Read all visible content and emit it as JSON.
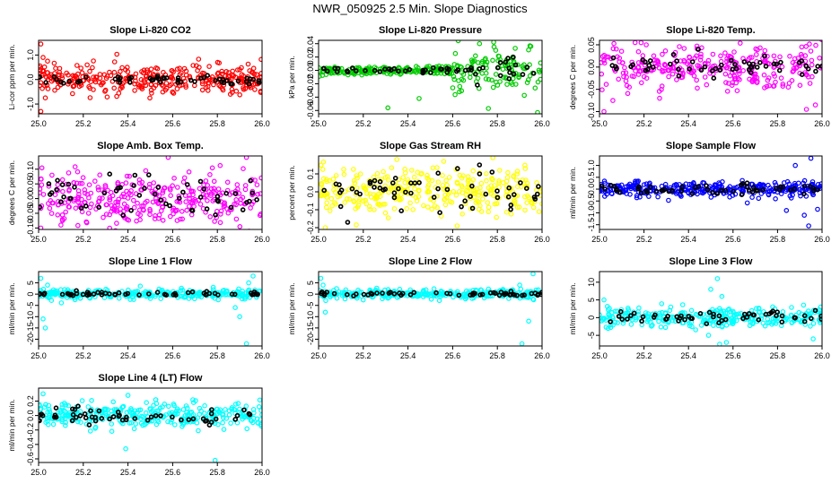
{
  "page_title": "NWR_050925  2.5 Min. Slope Diagnostics",
  "colors": {
    "background": "#ffffff",
    "reference_points": "#000000",
    "li820_co2": "#ff0000",
    "li820_pressure": "#00cc00",
    "magenta": "#ff00ff",
    "yellow": "#ffff00",
    "blue": "#0000ff",
    "cyan": "#00ffff"
  },
  "chart_data": [
    {
      "type": "scatter",
      "title": "Slope Li-820 CO2",
      "ylabel": "Li-cor ppm per min.",
      "xlim": [
        25.0,
        26.0
      ],
      "ylim": [
        -1.4,
        1.6
      ],
      "yticks": [
        -1.0,
        0.0,
        1.0
      ],
      "ytick_labels": [
        "-1.0",
        "0.0",
        "1.0"
      ],
      "xticks": [
        25.0,
        25.2,
        25.4,
        25.6,
        25.8,
        26.0
      ],
      "xtick_labels": [
        "25.0",
        "25.2",
        "25.4",
        "25.6",
        "25.8",
        "26.0"
      ],
      "series": [
        {
          "color": "#ff0000",
          "spread": 0.28,
          "n": 330,
          "outliers": [
            [
              25.01,
              1.45
            ],
            [
              25.01,
              -1.3
            ],
            [
              25.02,
              0.9
            ],
            [
              25.03,
              -0.75
            ],
            [
              25.04,
              0.75
            ]
          ]
        },
        {
          "color": "#000000",
          "spread": 0.12,
          "n": 55
        }
      ]
    },
    {
      "type": "scatter",
      "title": "Slope Li-820 Pressure",
      "ylabel": "kPa per min.",
      "xlim": [
        25.0,
        26.0
      ],
      "ylim": [
        -0.065,
        0.045
      ],
      "yticks": [
        -0.06,
        -0.04,
        -0.02,
        0.0,
        0.02,
        0.04
      ],
      "ytick_labels": [
        "-0.06",
        "-0.04",
        "-0.02",
        "0.00",
        "0.02",
        "0.04"
      ],
      "xticks": [
        25.0,
        25.2,
        25.4,
        25.6,
        25.8,
        26.0
      ],
      "xtick_labels": [
        "25.0",
        "25.2",
        "25.4",
        "25.6",
        "25.8",
        "26.0"
      ],
      "series": [
        {
          "color": "#00cc00",
          "spread": 0.003,
          "n": 300,
          "wide_from": 25.6,
          "wide_spread": 0.016,
          "outliers": [
            [
              25.72,
              0.04
            ],
            [
              25.88,
              0.033
            ],
            [
              25.95,
              0.036
            ],
            [
              25.76,
              -0.057
            ],
            [
              25.98,
              -0.063
            ],
            [
              25.31,
              -0.056
            ],
            [
              25.45,
              -0.042
            ],
            [
              25.63,
              -0.032
            ]
          ]
        },
        {
          "color": "#000000",
          "spread": 0.002,
          "n": 55,
          "wide_from": 25.7,
          "wide_spread": 0.01
        }
      ]
    },
    {
      "type": "scatter",
      "title": "Slope Li-820 Temp.",
      "ylabel": "degrees C per min.",
      "xlim": [
        25.0,
        26.0
      ],
      "ylim": [
        -0.105,
        0.06
      ],
      "yticks": [
        -0.1,
        -0.05,
        0.0,
        0.05
      ],
      "ytick_labels": [
        "-0.10",
        "-0.05",
        "0.00",
        "0.05"
      ],
      "xticks": [
        25.0,
        25.2,
        25.4,
        25.6,
        25.8,
        26.0
      ],
      "xtick_labels": [
        "25.0",
        "25.2",
        "25.4",
        "25.6",
        "25.8",
        "26.0"
      ],
      "series": [
        {
          "color": "#ff00ff",
          "spread": 0.025,
          "n": 300,
          "outliers": [
            [
              25.02,
              -0.1
            ],
            [
              25.06,
              -0.075
            ],
            [
              25.16,
              0.055
            ],
            [
              25.21,
              0.05
            ],
            [
              25.27,
              -0.07
            ],
            [
              25.93,
              -0.095
            ],
            [
              25.97,
              -0.085
            ]
          ]
        },
        {
          "color": "#000000",
          "spread": 0.012,
          "n": 55
        }
      ]
    },
    {
      "type": "scatter",
      "title": "Slope Amb. Box Temp.",
      "ylabel": "degrees C per min.",
      "xlim": [
        25.0,
        26.0
      ],
      "ylim": [
        -0.105,
        0.145
      ],
      "yticks": [
        -0.1,
        -0.05,
        0.0,
        0.05,
        0.1
      ],
      "ytick_labels": [
        "-0.10",
        "-0.05",
        "0.00",
        "0.05",
        "0.10"
      ],
      "xticks": [
        25.0,
        25.2,
        25.4,
        25.6,
        25.8,
        26.0
      ],
      "xtick_labels": [
        "25.0",
        "25.2",
        "25.4",
        "25.6",
        "25.8",
        "26.0"
      ],
      "series": [
        {
          "color": "#ff00ff",
          "spread": 0.045,
          "n": 330,
          "outliers": [
            [
              25.58,
              0.14
            ],
            [
              25.93,
              0.14
            ],
            [
              25.01,
              -0.1
            ],
            [
              25.1,
              -0.09
            ]
          ]
        },
        {
          "color": "#000000",
          "spread": 0.035,
          "n": 55
        }
      ]
    },
    {
      "type": "scatter",
      "title": "Slope Gas Stream RH",
      "ylabel": "percent per min.",
      "xlim": [
        25.0,
        26.0
      ],
      "ylim": [
        -0.21,
        0.2
      ],
      "yticks": [
        -0.2,
        -0.1,
        0.0,
        0.1
      ],
      "ytick_labels": [
        "-0.2",
        "-0.1",
        "0.0",
        "0.1"
      ],
      "xticks": [
        25.0,
        25.2,
        25.4,
        25.6,
        25.8,
        26.0
      ],
      "xtick_labels": [
        "25.0",
        "25.2",
        "25.4",
        "25.6",
        "25.8",
        "26.0"
      ],
      "series": [
        {
          "color": "#ffff00",
          "spread": 0.065,
          "n": 330,
          "outliers": [
            [
              25.03,
              -0.2
            ],
            [
              25.35,
              0.18
            ],
            [
              25.56,
              0.17
            ],
            [
              25.78,
              0.19
            ],
            [
              25.62,
              -0.19
            ]
          ]
        },
        {
          "color": "#000000",
          "spread": 0.055,
          "n": 55,
          "outliers": [
            [
              25.13,
              -0.17
            ],
            [
              25.72,
              0.15
            ]
          ]
        }
      ]
    },
    {
      "type": "scatter",
      "title": "Slope Sample Flow",
      "ylabel": "ml/min per min.",
      "xlim": [
        25.0,
        26.0
      ],
      "ylim": [
        -1.7,
        1.4
      ],
      "yticks": [
        -1.5,
        -1.0,
        -0.5,
        0.0,
        0.5,
        1.0
      ],
      "ytick_labels": [
        "-1.5",
        "-1.0",
        "-0.5",
        "0.0",
        "0.5",
        "1.0"
      ],
      "xticks": [
        25.0,
        25.2,
        25.4,
        25.6,
        25.8,
        26.0
      ],
      "xtick_labels": [
        "25.0",
        "25.2",
        "25.4",
        "25.6",
        "25.8",
        "26.0"
      ],
      "series": [
        {
          "color": "#0000ff",
          "spread": 0.17,
          "n": 330,
          "outliers": [
            [
              25.88,
              1.0
            ],
            [
              25.95,
              1.3
            ],
            [
              25.92,
              -1.1
            ],
            [
              25.94,
              -1.55
            ],
            [
              25.84,
              -0.9
            ],
            [
              25.98,
              -0.85
            ]
          ]
        },
        {
          "color": "#000000",
          "spread": 0.1,
          "n": 55
        }
      ]
    },
    {
      "type": "scatter",
      "title": "Slope Line 1 Flow",
      "ylabel": "ml/min per min.",
      "xlim": [
        25.0,
        26.0
      ],
      "ylim": [
        -23,
        10
      ],
      "yticks": [
        -20,
        -15,
        -10,
        -5,
        0,
        5
      ],
      "ytick_labels": [
        "-20",
        "-15",
        "-10",
        "-5",
        "0",
        "5"
      ],
      "xticks": [
        25.0,
        25.2,
        25.4,
        25.6,
        25.8,
        26.0
      ],
      "xtick_labels": [
        "25.0",
        "25.2",
        "25.4",
        "25.6",
        "25.8",
        "26.0"
      ],
      "series": [
        {
          "color": "#00ffff",
          "spread": 1.1,
          "n": 300,
          "outliers": [
            [
              25.01,
              7
            ],
            [
              25.02,
              -11
            ],
            [
              25.03,
              -15
            ],
            [
              25.04,
              4
            ],
            [
              25.93,
              -22
            ],
            [
              25.9,
              -10
            ],
            [
              25.96,
              8
            ],
            [
              25.94,
              5
            ],
            [
              25.88,
              -6
            ]
          ]
        },
        {
          "color": "#000000",
          "spread": 0.45,
          "n": 55
        }
      ]
    },
    {
      "type": "scatter",
      "title": "Slope Line 2 Flow",
      "ylabel": "ml/min per min.",
      "xlim": [
        25.0,
        26.0
      ],
      "ylim": [
        -23,
        10
      ],
      "yticks": [
        -20,
        -15,
        -10,
        -5,
        0,
        5
      ],
      "ytick_labels": [
        "-20",
        "-15",
        "-10",
        "-5",
        "0",
        "5"
      ],
      "xticks": [
        25.0,
        25.2,
        25.4,
        25.6,
        25.8,
        26.0
      ],
      "xtick_labels": [
        "25.0",
        "25.2",
        "25.4",
        "25.6",
        "25.8",
        "26.0"
      ],
      "series": [
        {
          "color": "#00ffff",
          "spread": 1.0,
          "n": 300,
          "outliers": [
            [
              25.01,
              7
            ],
            [
              25.02,
              4
            ],
            [
              25.03,
              -8
            ],
            [
              25.91,
              -22
            ],
            [
              25.94,
              -12
            ],
            [
              25.96,
              9
            ],
            [
              25.9,
              4
            ]
          ]
        },
        {
          "color": "#000000",
          "spread": 0.5,
          "n": 55
        }
      ]
    },
    {
      "type": "scatter",
      "title": "Slope Line 3 Flow",
      "ylabel": "ml/min per min.",
      "xlim": [
        25.0,
        26.0
      ],
      "ylim": [
        -8,
        13
      ],
      "yticks": [
        -5,
        0,
        5,
        10
      ],
      "ytick_labels": [
        "-5",
        "0",
        "5",
        "10"
      ],
      "xticks": [
        25.0,
        25.2,
        25.4,
        25.6,
        25.8,
        26.0
      ],
      "xtick_labels": [
        "25.0",
        "25.2",
        "25.4",
        "25.6",
        "25.8",
        "26.0"
      ],
      "series": [
        {
          "color": "#00ffff",
          "spread": 1.4,
          "n": 300,
          "outliers": [
            [
              25.5,
              8
            ],
            [
              25.53,
              11
            ],
            [
              25.55,
              6
            ],
            [
              25.57,
              -7
            ],
            [
              25.54,
              -7.5
            ],
            [
              25.49,
              -5
            ],
            [
              25.02,
              5
            ],
            [
              25.96,
              -6
            ]
          ]
        },
        {
          "color": "#000000",
          "spread": 0.9,
          "n": 55
        }
      ]
    },
    {
      "type": "scatter",
      "title": "Slope Line 4 (LT) Flow",
      "ylabel": "ml/min per min.",
      "xlim": [
        25.0,
        26.0
      ],
      "ylim": [
        -0.65,
        0.38
      ],
      "yticks": [
        -0.6,
        -0.4,
        -0.2,
        0.0,
        0.2
      ],
      "ytick_labels": [
        "-0.6",
        "-0.4",
        "-0.2",
        "0.0",
        "0.2"
      ],
      "xticks": [
        25.0,
        25.2,
        25.4,
        25.6,
        25.8,
        26.0
      ],
      "xtick_labels": [
        "25.0",
        "25.2",
        "25.4",
        "25.6",
        "25.8",
        "26.0"
      ],
      "series": [
        {
          "color": "#00ffff",
          "spread": 0.085,
          "n": 330,
          "outliers": [
            [
              25.79,
              -0.62
            ],
            [
              25.02,
              0.3
            ],
            [
              25.39,
              -0.46
            ],
            [
              25.4,
              0.28
            ]
          ]
        },
        {
          "color": "#000000",
          "spread": 0.06,
          "n": 55
        }
      ]
    }
  ]
}
